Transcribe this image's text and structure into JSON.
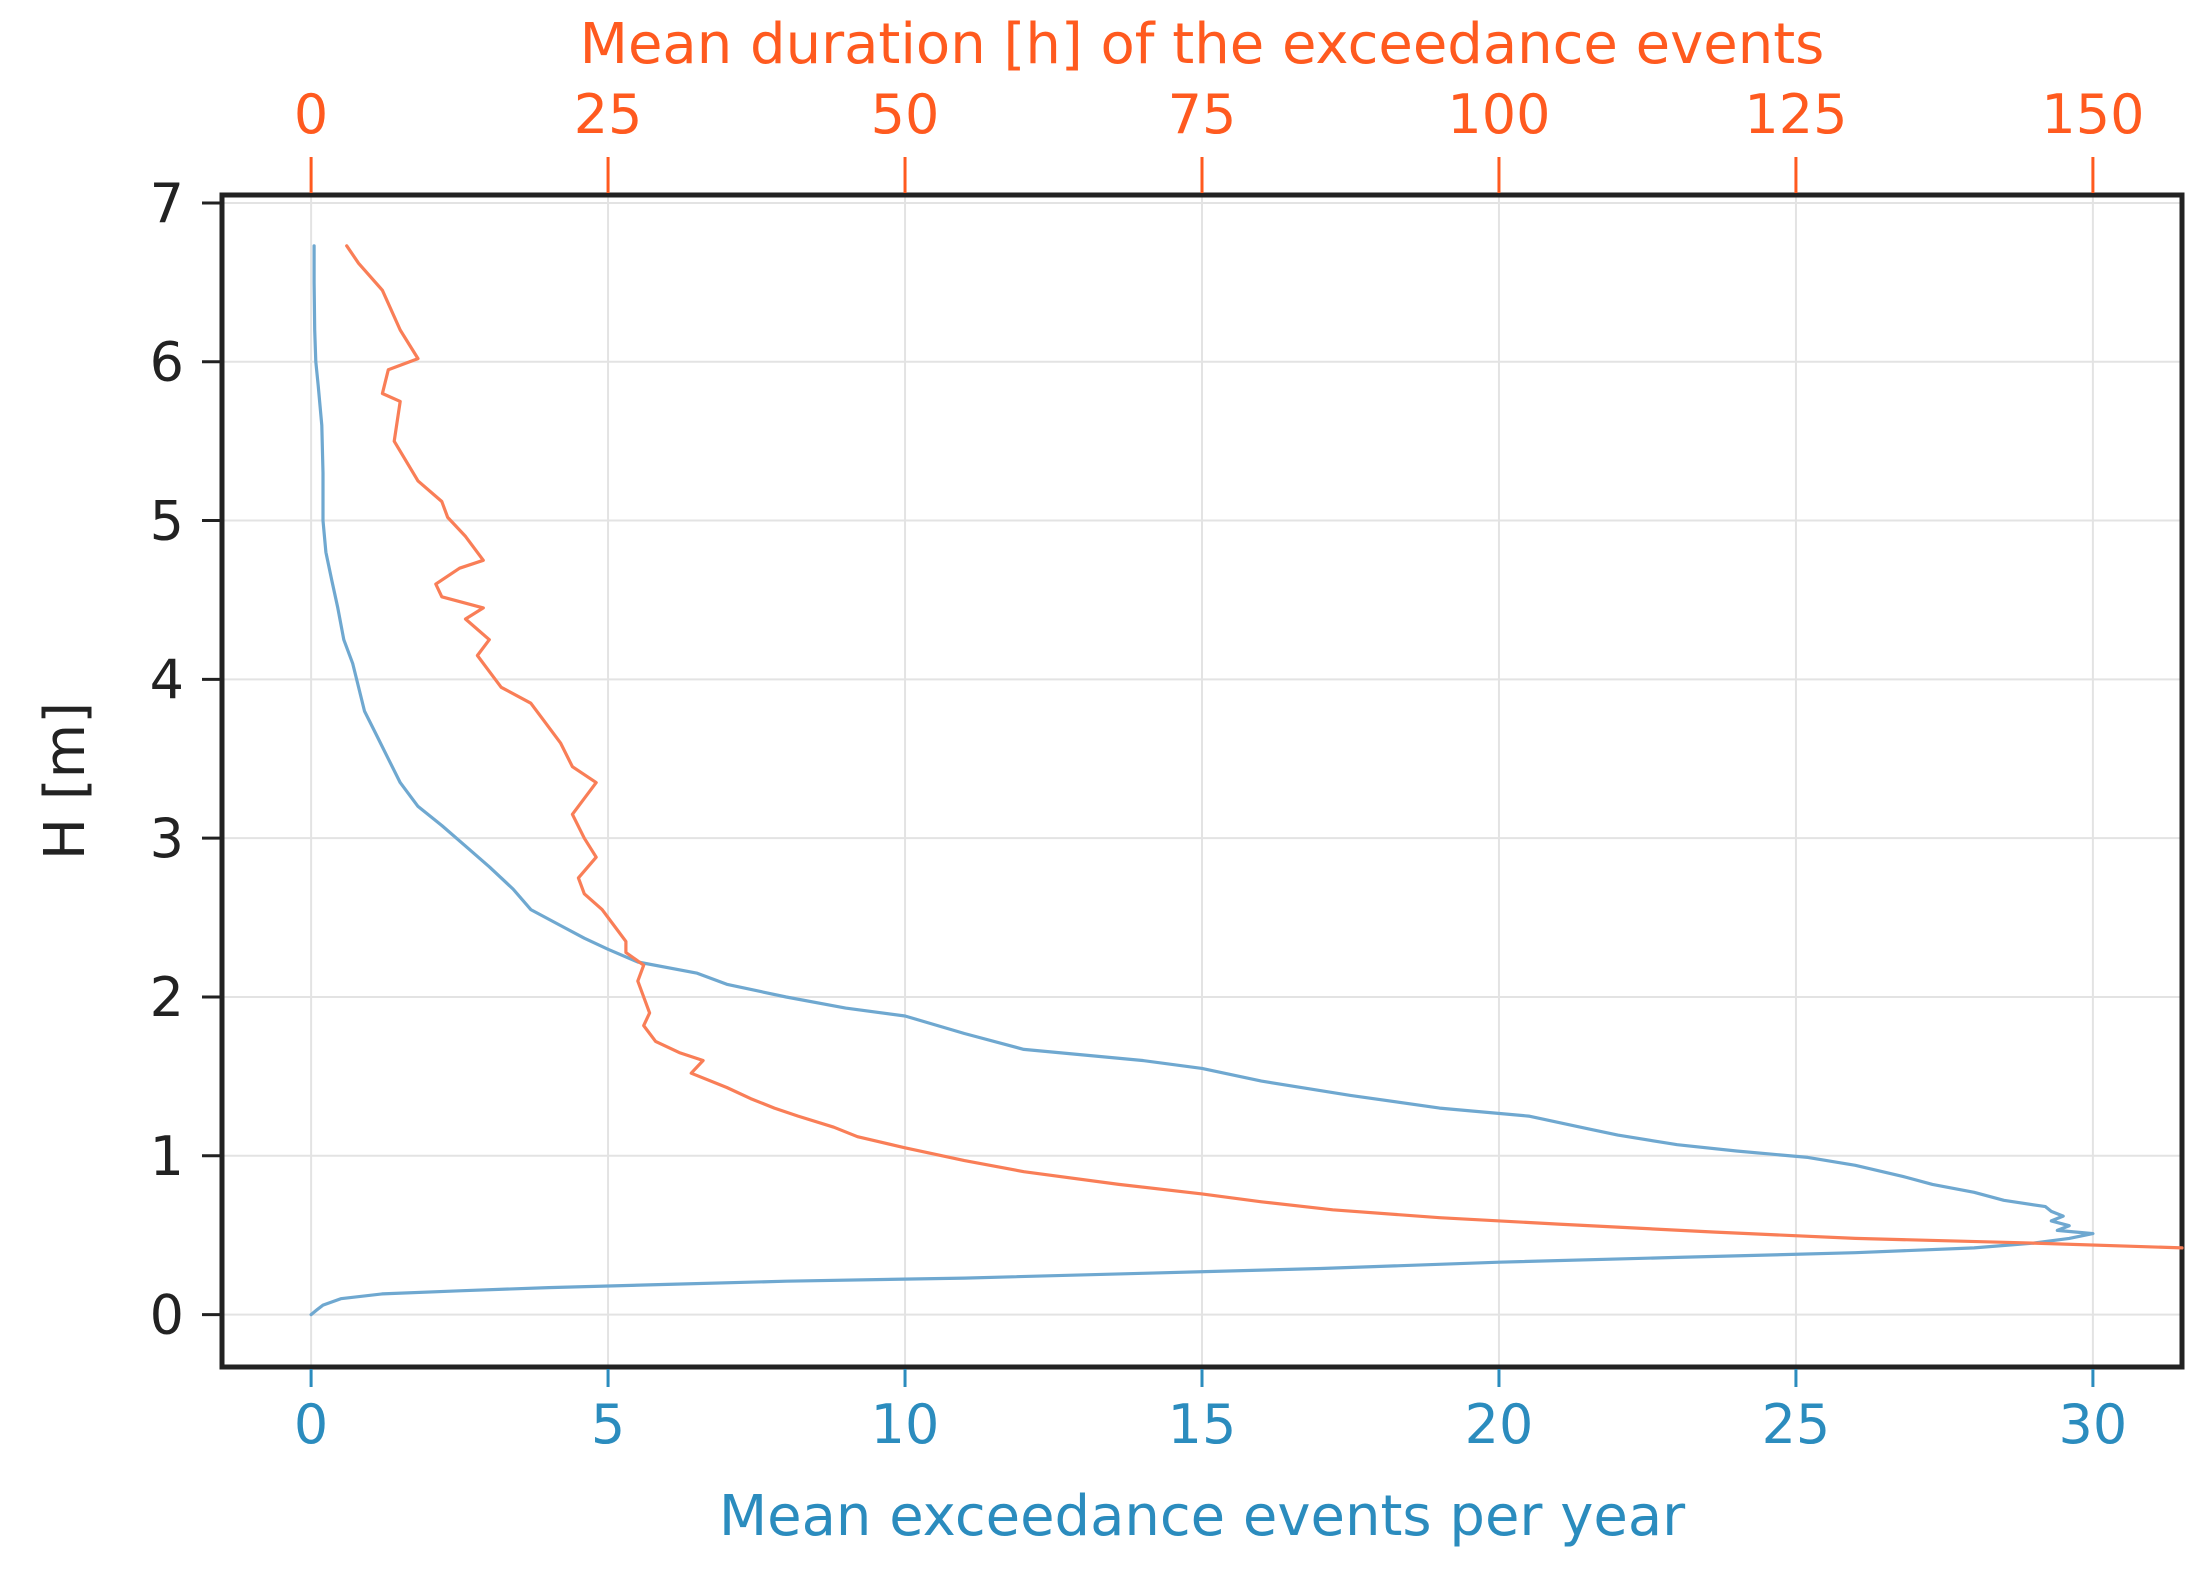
{
  "chart_data": {
    "type": "line",
    "title": "",
    "x_bottom": {
      "label": "Mean exceedance events per year",
      "range": [
        -1.5,
        31.5
      ],
      "ticks": [
        0,
        5,
        10,
        15,
        20,
        25,
        30
      ],
      "tick_labels": [
        "0",
        "5",
        "10",
        "15",
        "20",
        "25",
        "30"
      ],
      "color": "#2b8cbe"
    },
    "x_top": {
      "label": "Mean duration [h] of the exceedance events",
      "range": [
        -7.5,
        157.5
      ],
      "ticks": [
        0,
        25,
        50,
        75,
        100,
        125,
        150
      ],
      "tick_labels": [
        "0",
        "25",
        "50",
        "75",
        "100",
        "125",
        "150"
      ],
      "color": "#ff5a1f"
    },
    "y": {
      "label": "H [m]",
      "range": [
        -0.33,
        7.05
      ],
      "ticks": [
        0,
        1,
        2,
        3,
        4,
        5,
        6,
        7
      ],
      "tick_labels": [
        "0",
        "1",
        "2",
        "3",
        "4",
        "5",
        "6",
        "7"
      ]
    },
    "grid": true,
    "series": [
      {
        "name": "Mean exceedance events per year",
        "axis": "bottom",
        "color": "#6fa8d0",
        "points": [
          [
            0.0,
            0.0
          ],
          [
            0.1,
            0.03
          ],
          [
            0.2,
            0.06
          ],
          [
            0.5,
            0.1
          ],
          [
            1.2,
            0.13
          ],
          [
            2.5,
            0.15
          ],
          [
            4.0,
            0.17
          ],
          [
            6.0,
            0.19
          ],
          [
            8.0,
            0.21
          ],
          [
            11.0,
            0.23
          ],
          [
            14.0,
            0.26
          ],
          [
            17.0,
            0.29
          ],
          [
            20.0,
            0.33
          ],
          [
            23.0,
            0.36
          ],
          [
            26.0,
            0.39
          ],
          [
            28.0,
            0.42
          ],
          [
            29.0,
            0.45
          ],
          [
            29.6,
            0.48
          ],
          [
            30.0,
            0.51
          ],
          [
            29.4,
            0.53
          ],
          [
            29.6,
            0.56
          ],
          [
            29.3,
            0.59
          ],
          [
            29.5,
            0.62
          ],
          [
            29.3,
            0.65
          ],
          [
            29.2,
            0.68
          ],
          [
            28.5,
            0.72
          ],
          [
            28.0,
            0.77
          ],
          [
            27.3,
            0.82
          ],
          [
            26.8,
            0.87
          ],
          [
            26.0,
            0.94
          ],
          [
            25.2,
            0.99
          ],
          [
            24.0,
            1.03
          ],
          [
            23.0,
            1.07
          ],
          [
            22.0,
            1.13
          ],
          [
            21.5,
            1.17
          ],
          [
            20.5,
            1.25
          ],
          [
            19.0,
            1.3
          ],
          [
            17.5,
            1.38
          ],
          [
            16.0,
            1.47
          ],
          [
            15.0,
            1.55
          ],
          [
            14.0,
            1.6
          ],
          [
            12.0,
            1.67
          ],
          [
            11.0,
            1.77
          ],
          [
            10.0,
            1.88
          ],
          [
            9.0,
            1.93
          ],
          [
            8.0,
            2.0
          ],
          [
            7.0,
            2.08
          ],
          [
            6.5,
            2.15
          ],
          [
            5.5,
            2.22
          ],
          [
            5.0,
            2.3
          ],
          [
            4.6,
            2.37
          ],
          [
            4.2,
            2.45
          ],
          [
            3.7,
            2.55
          ],
          [
            3.4,
            2.68
          ],
          [
            3.0,
            2.82
          ],
          [
            2.6,
            2.95
          ],
          [
            2.2,
            3.08
          ],
          [
            1.8,
            3.2
          ],
          [
            1.5,
            3.35
          ],
          [
            1.3,
            3.5
          ],
          [
            1.1,
            3.65
          ],
          [
            0.9,
            3.8
          ],
          [
            0.8,
            3.95
          ],
          [
            0.7,
            4.1
          ],
          [
            0.55,
            4.25
          ],
          [
            0.45,
            4.45
          ],
          [
            0.35,
            4.62
          ],
          [
            0.25,
            4.8
          ],
          [
            0.2,
            5.0
          ],
          [
            0.2,
            5.3
          ],
          [
            0.18,
            5.6
          ],
          [
            0.12,
            5.85
          ],
          [
            0.08,
            6.0
          ],
          [
            0.06,
            6.2
          ],
          [
            0.05,
            6.5
          ],
          [
            0.05,
            6.73
          ]
        ]
      },
      {
        "name": "Mean duration [h] of the exceedance events",
        "axis": "top",
        "color": "#f97e57",
        "points": [
          [
            157.5,
            0.42
          ],
          [
            145.0,
            0.45
          ],
          [
            130.0,
            0.48
          ],
          [
            118.0,
            0.52
          ],
          [
            105.0,
            0.57
          ],
          [
            95.0,
            0.61
          ],
          [
            86.0,
            0.66
          ],
          [
            80.0,
            0.71
          ],
          [
            75.0,
            0.76
          ],
          [
            68.0,
            0.82
          ],
          [
            60.0,
            0.9
          ],
          [
            55.0,
            0.97
          ],
          [
            50.0,
            1.05
          ],
          [
            46.0,
            1.12
          ],
          [
            44.0,
            1.18
          ],
          [
            41.0,
            1.25
          ],
          [
            39.0,
            1.3
          ],
          [
            37.0,
            1.36
          ],
          [
            35.0,
            1.43
          ],
          [
            32.0,
            1.52
          ],
          [
            33.0,
            1.6
          ],
          [
            31.0,
            1.65
          ],
          [
            29.0,
            1.72
          ],
          [
            28.0,
            1.82
          ],
          [
            28.5,
            1.9
          ],
          [
            28.0,
            2.0
          ],
          [
            27.5,
            2.1
          ],
          [
            28.0,
            2.2
          ],
          [
            26.5,
            2.28
          ],
          [
            26.5,
            2.35
          ],
          [
            25.5,
            2.45
          ],
          [
            24.5,
            2.55
          ],
          [
            23.0,
            2.65
          ],
          [
            22.5,
            2.75
          ],
          [
            24.0,
            2.88
          ],
          [
            23.0,
            3.0
          ],
          [
            22.0,
            3.15
          ],
          [
            24.0,
            3.35
          ],
          [
            22.0,
            3.45
          ],
          [
            21.0,
            3.6
          ],
          [
            19.5,
            3.75
          ],
          [
            18.5,
            3.85
          ],
          [
            16.0,
            3.95
          ],
          [
            15.0,
            4.05
          ],
          [
            14.0,
            4.15
          ],
          [
            15.0,
            4.25
          ],
          [
            13.0,
            4.38
          ],
          [
            14.5,
            4.45
          ],
          [
            11.0,
            4.52
          ],
          [
            10.5,
            4.6
          ],
          [
            12.5,
            4.7
          ],
          [
            14.5,
            4.75
          ],
          [
            13.0,
            4.9
          ],
          [
            11.5,
            5.02
          ],
          [
            11.0,
            5.12
          ],
          [
            9.0,
            5.25
          ],
          [
            7.0,
            5.5
          ],
          [
            7.5,
            5.75
          ],
          [
            6.0,
            5.8
          ],
          [
            6.5,
            5.95
          ],
          [
            9.0,
            6.02
          ],
          [
            7.5,
            6.2
          ],
          [
            6.0,
            6.45
          ],
          [
            4.0,
            6.62
          ],
          [
            3.0,
            6.73
          ]
        ]
      }
    ]
  }
}
